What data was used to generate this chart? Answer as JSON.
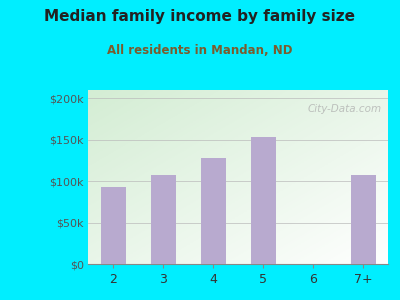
{
  "title": "Median family income by family size",
  "subtitle": "All residents in Mandan, ND",
  "categories": [
    "2",
    "3",
    "4",
    "5",
    "6",
    "7+"
  ],
  "values": [
    93000,
    107000,
    128000,
    153000,
    0,
    107000
  ],
  "bar_color": "#b8aacf",
  "title_color": "#222222",
  "subtitle_color": "#7a5c2e",
  "background_outer": "#00eeff",
  "yticks": [
    0,
    50000,
    100000,
    150000,
    200000
  ],
  "ytick_labels": [
    "$0",
    "$50k",
    "$100k",
    "$150k",
    "$200k"
  ],
  "ylim": [
    0,
    210000
  ],
  "watermark": "City-Data.com"
}
